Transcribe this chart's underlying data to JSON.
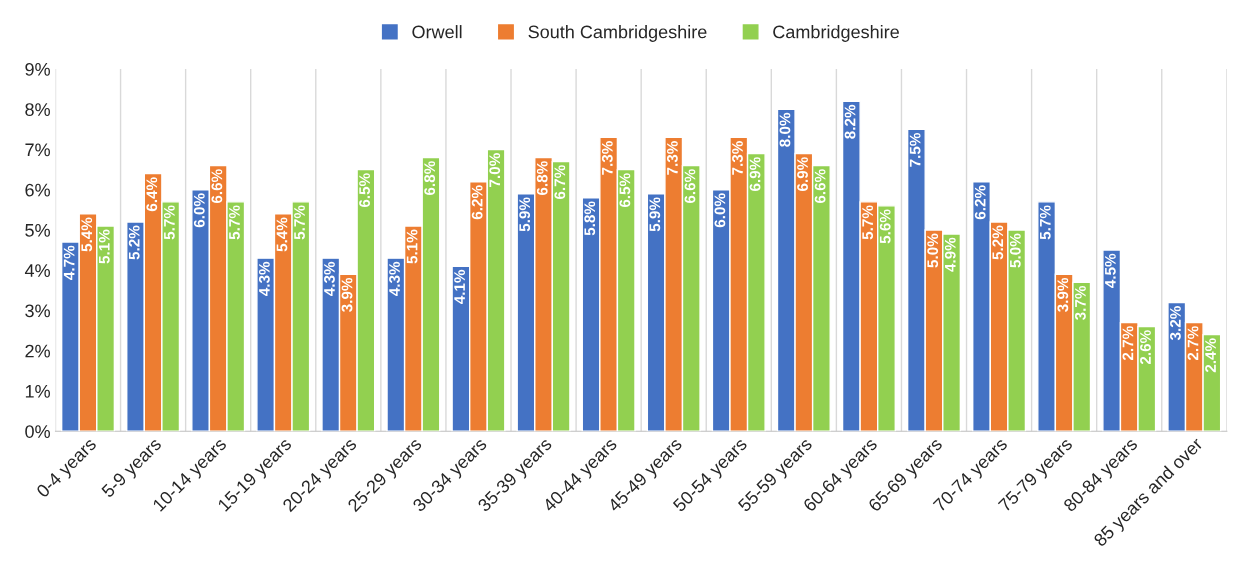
{
  "chart_data": {
    "type": "bar",
    "categories": [
      "0-4 years",
      "5-9 years",
      "10-14 years",
      "15-19 years",
      "20-24 years",
      "25-29 years",
      "30-34 years",
      "35-39 years",
      "40-44 years",
      "45-49 years",
      "50-54 years",
      "55-59 years",
      "60-64 years",
      "65-69 years",
      "70-74 years",
      "75-79 years",
      "80-84 years",
      "85 years and over"
    ],
    "series": [
      {
        "name": "Orwell",
        "color": "#4472c4",
        "values": [
          4.7,
          5.2,
          6.0,
          4.3,
          4.3,
          4.3,
          4.1,
          5.9,
          5.8,
          5.9,
          6.0,
          8.0,
          8.2,
          7.5,
          6.2,
          5.7,
          4.5,
          3.2
        ],
        "value_labels": [
          "4.7%",
          "5.2%",
          "6.0%",
          "4.3%",
          "4.3%",
          "4.3%",
          "4.1%",
          "5.9%",
          "5.8%",
          "5.9%",
          "6.0%",
          "8.0%",
          "8.2%",
          "7.5%",
          "6.2%",
          "5.7%",
          "4.5%",
          "3.2%"
        ]
      },
      {
        "name": "South Cambridgeshire",
        "color": "#ed7d31",
        "values": [
          5.4,
          6.4,
          6.6,
          5.4,
          3.9,
          5.1,
          6.2,
          6.8,
          7.3,
          7.3,
          7.3,
          6.9,
          5.7,
          5.0,
          5.2,
          3.9,
          2.7,
          2.7
        ],
        "value_labels": [
          "5.4%",
          "6.4%",
          "6.6%",
          "5.4%",
          "3.9%",
          "5.1%",
          "6.2%",
          "6.8%",
          "7.3%",
          "7.3%",
          "7.3%",
          "6.9%",
          "5.7%",
          "5.0%",
          "5.2%",
          "3.9%",
          "2.7%",
          "2.7%"
        ]
      },
      {
        "name": "Cambridgeshire",
        "color": "#92d050",
        "values": [
          5.1,
          5.7,
          5.7,
          5.7,
          6.5,
          6.8,
          7.0,
          6.7,
          6.5,
          6.6,
          6.9,
          6.6,
          5.6,
          4.9,
          5.0,
          3.7,
          2.6,
          2.4
        ],
        "value_labels": [
          "5.1%",
          "5.7%",
          "5.7%",
          "5.7%",
          "6.5%",
          "6.8%",
          "7.0%",
          "6.7%",
          "6.5%",
          "6.6%",
          "6.9%",
          "6.6%",
          "5.6%",
          "4.9%",
          "5.0%",
          "3.7%",
          "2.6%",
          "2.4%"
        ]
      }
    ],
    "ylim": [
      0,
      9
    ],
    "yticks": [
      {
        "value": 0,
        "label": "0%"
      },
      {
        "value": 1,
        "label": "1%"
      },
      {
        "value": 2,
        "label": "2%"
      },
      {
        "value": 3,
        "label": "3%"
      },
      {
        "value": 4,
        "label": "4%"
      },
      {
        "value": 5,
        "label": "5%"
      },
      {
        "value": 6,
        "label": "6%"
      },
      {
        "value": 7,
        "label": "7%"
      },
      {
        "value": 8,
        "label": "8%"
      },
      {
        "value": 9,
        "label": "9%"
      }
    ],
    "grid": false,
    "legend": "top"
  }
}
